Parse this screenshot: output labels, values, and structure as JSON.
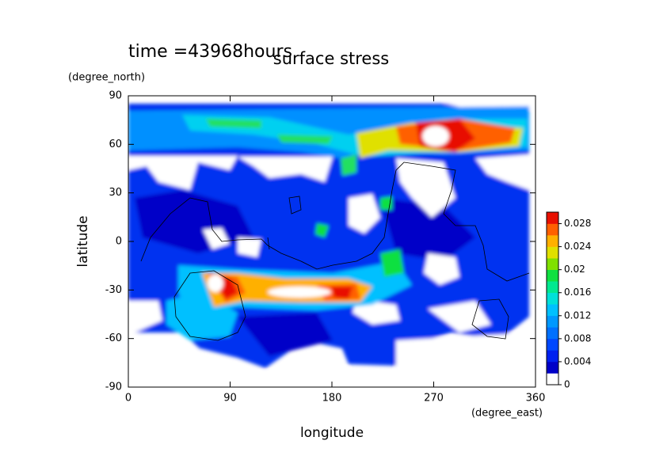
{
  "chart_data": {
    "type": "contour",
    "title": "surface stress",
    "subtitle": "time =43968hours",
    "x_label": "longitude",
    "x_unit": "(degree_east)",
    "y_label": "latitude",
    "y_unit": "(degree_north)",
    "xlim": [
      0,
      360
    ],
    "xticks": [
      0,
      90,
      180,
      270,
      360
    ],
    "ylim": [
      -90,
      90
    ],
    "yticks": [
      -90,
      -60,
      -30,
      0,
      30,
      60,
      90
    ],
    "colorbar": {
      "lim": [
        0,
        0.03
      ],
      "ticks": [
        0,
        0.004,
        0.008,
        0.012,
        0.016,
        0.02,
        0.024,
        0.028
      ],
      "colors": [
        "#ffffff",
        "#0000c8",
        "#0020f0",
        "#0048ff",
        "#0070ff",
        "#0098ff",
        "#00c0ff",
        "#00e0d8",
        "#00e890",
        "#10e040",
        "#80e000",
        "#e0e000",
        "#ffb000",
        "#ff6000",
        "#e81000"
      ]
    }
  }
}
